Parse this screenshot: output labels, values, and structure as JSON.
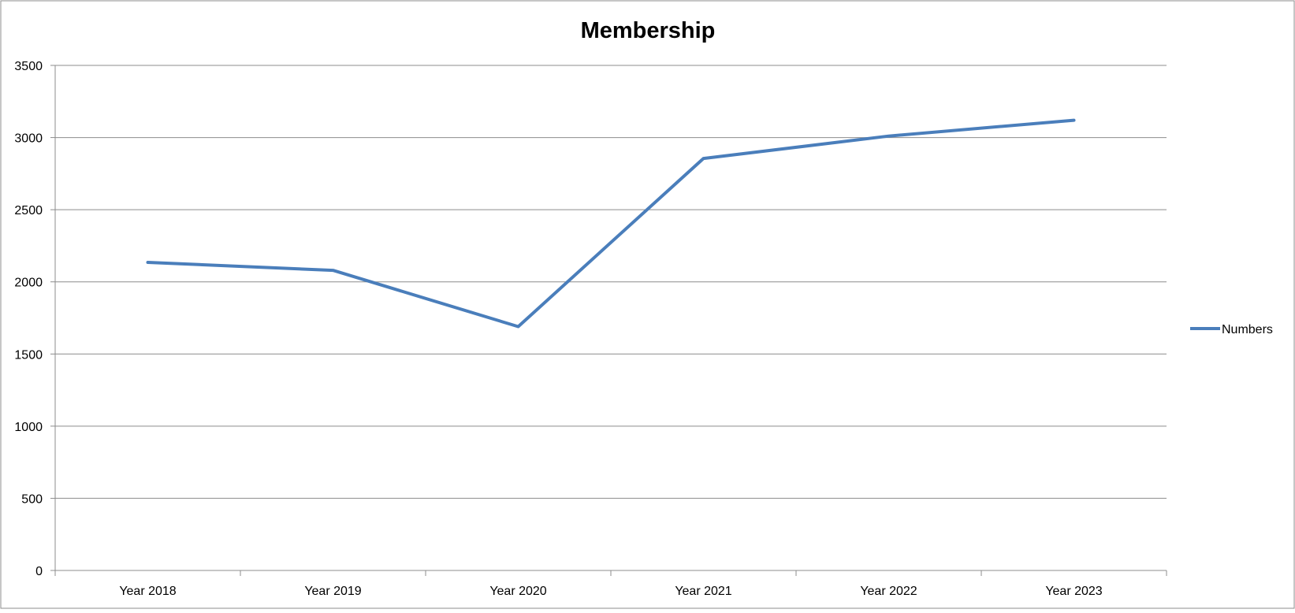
{
  "chart_data": {
    "type": "line",
    "title": "Membership",
    "xlabel": "",
    "ylabel": "",
    "categories": [
      "Year 2018",
      "Year 2019",
      "Year 2020",
      "Year 2021",
      "Year 2022",
      "Year 2023"
    ],
    "series": [
      {
        "name": "Numbers",
        "values": [
          2135,
          2080,
          1690,
          2855,
          3010,
          3120
        ],
        "color": "#4a7ebb"
      }
    ],
    "ylim": [
      0,
      3500
    ],
    "yticks": [
      "0",
      "500",
      "1000",
      "1500",
      "2000",
      "2500",
      "3000",
      "3500"
    ],
    "grid": true,
    "legend_position": "right"
  }
}
